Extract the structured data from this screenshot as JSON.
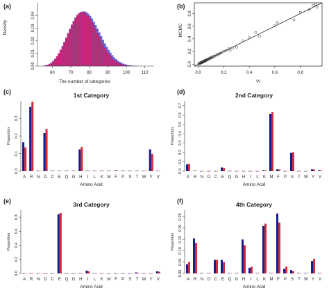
{
  "figure": {
    "amino_acids": [
      "A",
      "R",
      "N",
      "D",
      "C",
      "E",
      "Q",
      "G",
      "H",
      "I",
      "L",
      "K",
      "M",
      "F",
      "P",
      "S",
      "T",
      "W",
      "Y",
      "V"
    ],
    "colors": {
      "series1": "#1a1a8c",
      "series2": "#d62b3a",
      "hist_fill": "#c8286e",
      "hist_edge": "#4a4acc",
      "line": "#222222"
    }
  },
  "chart_data": [
    {
      "panel": "(a)",
      "type": "bar",
      "title": "",
      "xlabel": "The number of categories",
      "ylabel": "Density",
      "xlim": [
        52,
        115
      ],
      "ylim": [
        0,
        0.05
      ],
      "xticks": [
        "60",
        "70",
        "80",
        "90",
        "100",
        "110"
      ],
      "yticks": [
        "0.00",
        "0.01",
        "0.02",
        "0.03",
        "0.04"
      ],
      "bins": [
        55,
        56,
        57,
        58,
        59,
        60,
        61,
        62,
        63,
        64,
        65,
        66,
        67,
        68,
        69,
        70,
        71,
        72,
        73,
        74,
        75,
        76,
        77,
        78,
        79,
        80,
        81,
        82,
        83,
        84,
        85,
        86,
        87,
        88,
        89,
        90,
        91,
        92,
        93,
        94,
        95,
        96,
        97,
        98,
        99,
        100,
        101,
        102,
        103,
        104,
        105
      ],
      "series": [
        {
          "name": "",
          "values": [
            0.0003,
            0.0006,
            0.001,
            0.0017,
            0.0027,
            0.004,
            0.0057,
            0.0077,
            0.0101,
            0.0128,
            0.0158,
            0.019,
            0.0224,
            0.0259,
            0.0293,
            0.0326,
            0.0356,
            0.0382,
            0.0403,
            0.0418,
            0.0427,
            0.0429,
            0.0425,
            0.0414,
            0.0397,
            0.0375,
            0.0349,
            0.0321,
            0.0291,
            0.026,
            0.0229,
            0.0199,
            0.017,
            0.0144,
            0.012,
            0.0098,
            0.0079,
            0.0063,
            0.0049,
            0.0038,
            0.0029,
            0.0022,
            0.0016,
            0.0012,
            0.0009,
            0.0006,
            0.0004,
            0.0003,
            0.0002,
            0.0001,
            0.0001
          ]
        },
        {
          "name": "",
          "values": [
            0.0002,
            0.0004,
            0.0008,
            0.0013,
            0.0021,
            0.0032,
            0.0047,
            0.0066,
            0.0088,
            0.0113,
            0.0142,
            0.0173,
            0.0206,
            0.024,
            0.0275,
            0.0309,
            0.034,
            0.0368,
            0.0392,
            0.0411,
            0.0424,
            0.0431,
            0.0432,
            0.0426,
            0.0414,
            0.0397,
            0.0376,
            0.0351,
            0.0324,
            0.0295,
            0.0266,
            0.0236,
            0.0207,
            0.0179,
            0.0152,
            0.0128,
            0.0106,
            0.0086,
            0.0069,
            0.0055,
            0.0043,
            0.0033,
            0.0025,
            0.0019,
            0.0014,
            0.001,
            0.0007,
            0.0005,
            0.0003,
            0.0002,
            0.0001
          ]
        }
      ]
    },
    {
      "panel": "(b)",
      "type": "scatter",
      "title": "",
      "xlabel": "VI",
      "ylabel": "MCMC",
      "xlim": [
        -0.03,
        0.97
      ],
      "ylim": [
        -0.03,
        0.97
      ],
      "xticks": [
        "0.0",
        "0.2",
        "0.4",
        "0.6",
        "0.8"
      ],
      "yticks": [
        "0.0",
        "0.2",
        "0.4",
        "0.6",
        "0.8"
      ],
      "line": [
        [
          -0.03,
          -0.03
        ],
        [
          0.97,
          0.97
        ]
      ],
      "x": [
        0.005,
        0.01,
        0.012,
        0.015,
        0.018,
        0.02,
        0.022,
        0.025,
        0.028,
        0.03,
        0.033,
        0.035,
        0.038,
        0.04,
        0.042,
        0.045,
        0.048,
        0.05,
        0.053,
        0.055,
        0.058,
        0.06,
        0.063,
        0.066,
        0.07,
        0.075,
        0.08,
        0.085,
        0.09,
        0.095,
        0.1,
        0.105,
        0.11,
        0.12,
        0.13,
        0.14,
        0.15,
        0.16,
        0.17,
        0.18,
        0.2,
        0.22,
        0.24,
        0.25,
        0.27,
        0.3,
        0.35,
        0.4,
        0.45,
        0.48,
        0.6,
        0.62,
        0.75,
        0.8,
        0.87,
        0.9,
        0.92,
        0.93
      ],
      "y": [
        0.006,
        0.012,
        0.01,
        0.018,
        0.016,
        0.024,
        0.02,
        0.027,
        0.025,
        0.034,
        0.03,
        0.038,
        0.036,
        0.043,
        0.04,
        0.049,
        0.046,
        0.055,
        0.05,
        0.059,
        0.056,
        0.065,
        0.06,
        0.07,
        0.068,
        0.08,
        0.078,
        0.09,
        0.085,
        0.1,
        0.098,
        0.11,
        0.105,
        0.125,
        0.128,
        0.145,
        0.148,
        0.16,
        0.172,
        0.175,
        0.205,
        0.218,
        0.245,
        0.22,
        0.255,
        0.27,
        0.37,
        0.42,
        0.5,
        0.44,
        0.61,
        0.66,
        0.7,
        0.82,
        0.86,
        0.93,
        0.95,
        0.9
      ]
    },
    {
      "panel": "(c)",
      "type": "bar",
      "title": "1st Category",
      "xlabel": "Amino Acid",
      "ylabel": "Proportion",
      "ylim": [
        0,
        0.4
      ],
      "yticks": [
        "0.0",
        "0.1",
        "0.2",
        "0.3"
      ],
      "categories": [
        "A",
        "R",
        "N",
        "D",
        "C",
        "E",
        "Q",
        "G",
        "H",
        "I",
        "L",
        "K",
        "M",
        "F",
        "P",
        "S",
        "T",
        "W",
        "Y",
        "V"
      ],
      "series": [
        {
          "name": "",
          "values": [
            0.165,
            0.365,
            0.002,
            0.218,
            0.002,
            0.002,
            0.002,
            0.002,
            0.124,
            0.002,
            0.002,
            0.002,
            0.002,
            0.003,
            0.002,
            0.002,
            0.002,
            0.002,
            0.124,
            0.002
          ]
        },
        {
          "name": "",
          "values": [
            0.135,
            0.395,
            0.002,
            0.24,
            0.002,
            0.002,
            0.002,
            0.002,
            0.138,
            0.002,
            0.002,
            0.002,
            0.002,
            0.004,
            0.002,
            0.002,
            0.002,
            0.002,
            0.098,
            0.002
          ]
        }
      ]
    },
    {
      "panel": "(d)",
      "type": "bar",
      "title": "2nd Category",
      "xlabel": "Amino Acid",
      "ylabel": "Proportion",
      "ylim": [
        0,
        0.75
      ],
      "yticks": [
        "0.0",
        "0.1",
        "0.2",
        "0.3",
        "0.4",
        "0.5",
        "0.6",
        "0.7"
      ],
      "categories": [
        "A",
        "R",
        "N",
        "D",
        "C",
        "E",
        "Q",
        "G",
        "H",
        "I",
        "L",
        "K",
        "M",
        "F",
        "P",
        "S",
        "T",
        "W",
        "Y",
        "V"
      ],
      "series": [
        {
          "name": "",
          "values": [
            0.072,
            0.004,
            0.002,
            0.002,
            0.002,
            0.04,
            0.003,
            0.002,
            0.002,
            0.002,
            0.002,
            0.01,
            0.61,
            0.02,
            0.002,
            0.195,
            0.002,
            0.002,
            0.02,
            0.01
          ]
        },
        {
          "name": "",
          "values": [
            0.075,
            0.004,
            0.002,
            0.002,
            0.002,
            0.034,
            0.003,
            0.002,
            0.002,
            0.002,
            0.002,
            0.008,
            0.63,
            0.018,
            0.002,
            0.2,
            0.002,
            0.002,
            0.018,
            0.008
          ]
        }
      ]
    },
    {
      "panel": "(e)",
      "type": "bar",
      "title": "3rd Category",
      "xlabel": "Amino Acid",
      "ylabel": "Proportion",
      "ylim": [
        0,
        0.9
      ],
      "yticks": [
        "0.0",
        "0.2",
        "0.4",
        "0.6",
        "0.8"
      ],
      "categories": [
        "A",
        "R",
        "N",
        "D",
        "C",
        "E",
        "Q",
        "G",
        "H",
        "I",
        "L",
        "K",
        "M",
        "F",
        "P",
        "S",
        "T",
        "W",
        "Y",
        "V"
      ],
      "series": [
        {
          "name": "",
          "values": [
            0.002,
            0.002,
            0.002,
            0.002,
            0.002,
            0.84,
            0.002,
            0.002,
            0.002,
            0.04,
            0.002,
            0.002,
            0.002,
            0.002,
            0.002,
            0.002,
            0.015,
            0.002,
            0.002,
            0.03
          ]
        },
        {
          "name": "",
          "values": [
            0.002,
            0.002,
            0.002,
            0.002,
            0.002,
            0.86,
            0.002,
            0.002,
            0.002,
            0.03,
            0.002,
            0.002,
            0.002,
            0.002,
            0.002,
            0.002,
            0.01,
            0.002,
            0.002,
            0.025
          ]
        }
      ]
    },
    {
      "panel": "(f)",
      "type": "bar",
      "title": "4th Category",
      "xlabel": "Amino Acid",
      "ylabel": "Proportion",
      "ylim": [
        0,
        0.28
      ],
      "yticks": [
        "0.00",
        "0.05",
        "0.10",
        "0.15",
        "0.20",
        "0.25"
      ],
      "categories": [
        "A",
        "R",
        "N",
        "D",
        "C",
        "E",
        "Q",
        "G",
        "H",
        "I",
        "L",
        "K",
        "M",
        "F",
        "P",
        "S",
        "T",
        "W",
        "Y",
        "V"
      ],
      "series": [
        {
          "name": "",
          "values": [
            0.04,
            0.155,
            0.002,
            0.002,
            0.06,
            0.06,
            0.002,
            0.002,
            0.15,
            0.025,
            0.002,
            0.21,
            0.002,
            0.265,
            0.02,
            0.015,
            0.002,
            0.002,
            0.055,
            0.002
          ]
        },
        {
          "name": "",
          "values": [
            0.05,
            0.135,
            0.002,
            0.002,
            0.06,
            0.05,
            0.002,
            0.002,
            0.125,
            0.03,
            0.002,
            0.22,
            0.002,
            0.225,
            0.03,
            0.01,
            0.002,
            0.002,
            0.065,
            0.002
          ]
        }
      ]
    }
  ]
}
